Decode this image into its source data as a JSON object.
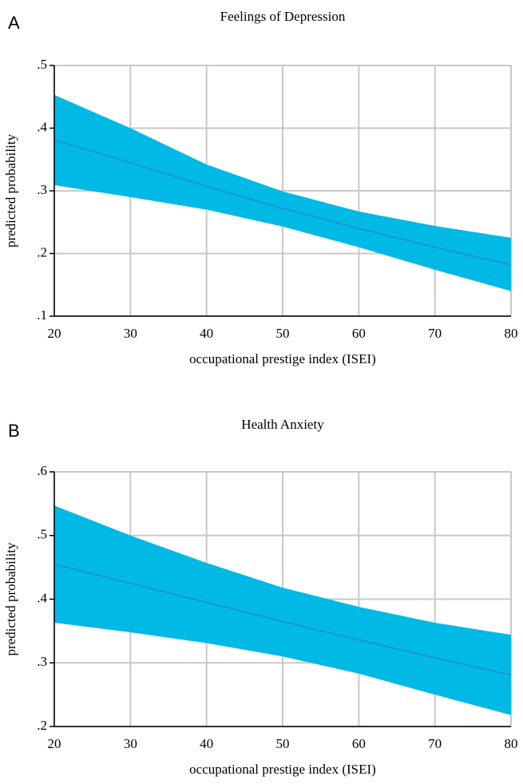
{
  "chart_data": [
    {
      "type": "line",
      "panel_label": "A",
      "title": "Feelings of Depression",
      "xlabel": "occupational prestige index (ISEI)",
      "ylabel": "predicted probability",
      "x": [
        20,
        30,
        40,
        50,
        60,
        70,
        80
      ],
      "series": [
        {
          "color": "#1e8ad6",
          "band_color": "#00b9e4",
          "values": [
            0.381,
            0.345,
            0.307,
            0.272,
            0.24,
            0.21,
            0.182
          ],
          "upper": [
            0.453,
            0.4,
            0.342,
            0.299,
            0.267,
            0.244,
            0.225
          ],
          "lower": [
            0.309,
            0.29,
            0.27,
            0.243,
            0.21,
            0.174,
            0.14
          ]
        }
      ],
      "xlim": [
        20,
        80
      ],
      "xticks": [
        20,
        30,
        40,
        50,
        60,
        70,
        80
      ],
      "ylim": [
        0.1,
        0.5
      ],
      "yticks": [
        {
          "value": 0.1,
          "label": ".1"
        },
        {
          "value": 0.2,
          "label": ".2"
        },
        {
          "value": 0.3,
          "label": ".3"
        },
        {
          "value": 0.4,
          "label": ".4"
        },
        {
          "value": 0.5,
          "label": ".5"
        }
      ],
      "grid": true
    },
    {
      "type": "line",
      "panel_label": "B",
      "title": "Health Anxiety",
      "xlabel": "occupational prestige index (ISEI)",
      "ylabel": "predicted probability",
      "x": [
        20,
        30,
        40,
        50,
        60,
        70,
        80
      ],
      "series": [
        {
          "color": "#1e8ad6",
          "band_color": "#00b9e4",
          "values": [
            0.455,
            0.425,
            0.395,
            0.365,
            0.336,
            0.308,
            0.281
          ],
          "upper": [
            0.547,
            0.5,
            0.457,
            0.418,
            0.388,
            0.363,
            0.344
          ],
          "lower": [
            0.363,
            0.348,
            0.331,
            0.31,
            0.283,
            0.25,
            0.218
          ]
        }
      ],
      "xlim": [
        20,
        80
      ],
      "xticks": [
        20,
        30,
        40,
        50,
        60,
        70,
        80
      ],
      "ylim": [
        0.2,
        0.6
      ],
      "yticks": [
        {
          "value": 0.2,
          "label": ".2"
        },
        {
          "value": 0.3,
          "label": ".3"
        },
        {
          "value": 0.4,
          "label": ".4"
        },
        {
          "value": 0.5,
          "label": ".5"
        },
        {
          "value": 0.6,
          "label": ".6"
        }
      ],
      "grid": true
    }
  ]
}
